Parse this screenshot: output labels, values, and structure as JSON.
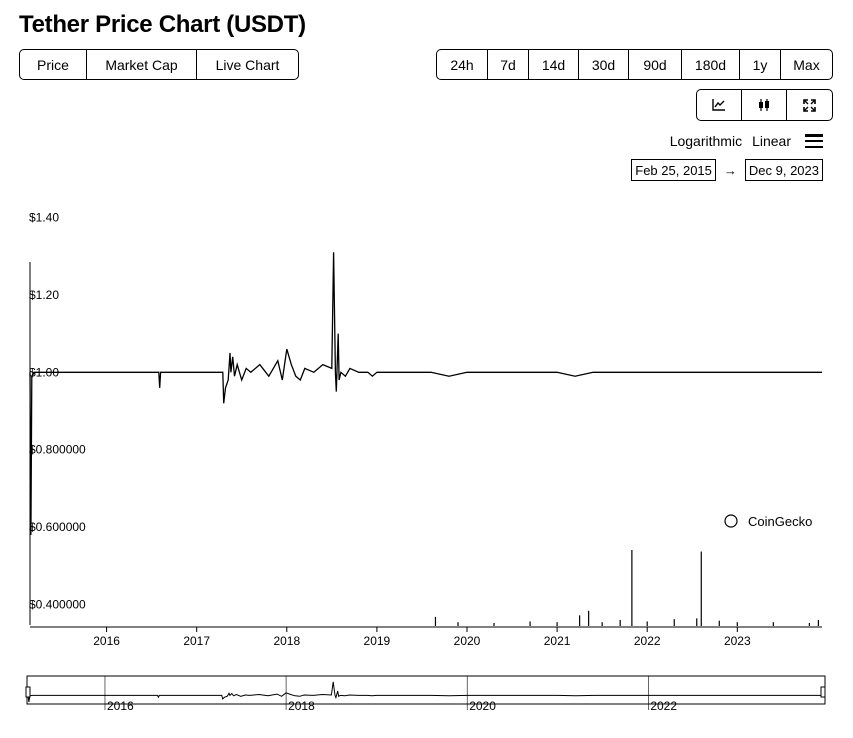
{
  "page_title": "Tether Price Chart (USDT)",
  "tabs": [
    "Price",
    "Market Cap",
    "Live Chart"
  ],
  "ranges": [
    "24h",
    "7d",
    "14d",
    "30d",
    "90d",
    "180d",
    "1y",
    "Max"
  ],
  "toolbar": {
    "icons": [
      "line-chart-icon",
      "candlestick-icon",
      "fullscreen-icon"
    ]
  },
  "scale": {
    "log_label": "Logarithmic",
    "linear_label": "Linear"
  },
  "date_range": {
    "from": "Feb 25, 2015",
    "arrow": "→",
    "to": "Dec 9, 2023"
  },
  "watermark": "CoinGecko",
  "colors": {
    "line": "#000000",
    "background": "#ffffff"
  },
  "chart_data": {
    "type": "line",
    "title": "",
    "xlabel": "",
    "ylabel": "",
    "y_tick_labels": [
      "$1.40",
      "$1.20",
      "$1.00",
      "$0.800000",
      "$0.600000",
      "$0.400000"
    ],
    "y_ticks": [
      1.4,
      1.2,
      1.0,
      0.8,
      0.6,
      0.4
    ],
    "x_tick_labels": [
      "2016",
      "2017",
      "2018",
      "2019",
      "2020",
      "2021",
      "2022",
      "2023"
    ],
    "x_ticks": [
      2016,
      2017,
      2018,
      2019,
      2020,
      2021,
      2022,
      2023
    ],
    "xlim": [
      2015.15,
      2023.94
    ],
    "ylim": [
      0.36,
      1.44
    ],
    "grid": false,
    "series": [
      {
        "x": [
          2015.15,
          2015.16,
          2015.17,
          2015.2,
          2015.5,
          2016.0,
          2016.58,
          2016.59,
          2016.6,
          2017.0,
          2017.29,
          2017.3,
          2017.32,
          2017.35,
          2017.37,
          2017.38,
          2017.4,
          2017.42,
          2017.45,
          2017.5,
          2017.55,
          2017.6,
          2017.7,
          2017.8,
          2017.9,
          2017.95,
          2018.0,
          2018.05,
          2018.1,
          2018.15,
          2018.2,
          2018.3,
          2018.4,
          2018.5,
          2018.52,
          2018.54,
          2018.55,
          2018.57,
          2018.58,
          2018.6,
          2018.65,
          2018.7,
          2018.8,
          2018.9,
          2018.95,
          2019.0,
          2019.2,
          2019.4,
          2019.6,
          2019.8,
          2020.0,
          2020.2,
          2020.4,
          2020.6,
          2020.8,
          2021.0,
          2021.2,
          2021.4,
          2021.6,
          2021.8,
          2022.0,
          2022.2,
          2022.4,
          2022.6,
          2022.8,
          2023.0,
          2023.2,
          2023.4,
          2023.6,
          2023.8,
          2023.94
        ],
        "y": [
          1.0,
          0.58,
          0.99,
          1.0,
          1.0,
          1.0,
          1.0,
          0.96,
          1.0,
          1.0,
          1.0,
          0.92,
          0.96,
          0.98,
          1.05,
          1.0,
          1.04,
          0.99,
          1.02,
          0.98,
          1.01,
          1.0,
          1.02,
          0.99,
          1.03,
          0.98,
          1.06,
          1.02,
          0.99,
          0.98,
          1.01,
          1.0,
          1.02,
          1.01,
          1.31,
          1.0,
          0.95,
          1.1,
          0.98,
          1.0,
          0.99,
          1.01,
          1.0,
          1.0,
          0.99,
          1.0,
          1.0,
          1.0,
          1.0,
          0.99,
          1.0,
          1.0,
          1.0,
          1.0,
          1.0,
          1.0,
          0.99,
          1.0,
          1.0,
          1.0,
          1.0,
          1.0,
          1.0,
          1.0,
          1.0,
          1.0,
          1.0,
          1.0,
          1.0,
          1.0,
          1.0
        ]
      }
    ],
    "volume": {
      "x": [
        2019.65,
        2019.9,
        2020.3,
        2020.7,
        2021.0,
        2021.25,
        2021.35,
        2021.5,
        2021.7,
        2021.83,
        2022.0,
        2022.3,
        2022.55,
        2022.6,
        2022.8,
        2023.0,
        2023.4,
        2023.8,
        2023.9
      ],
      "v": [
        0.12,
        0.05,
        0.04,
        0.06,
        0.05,
        0.14,
        0.2,
        0.05,
        0.08,
        1.0,
        0.06,
        0.09,
        0.1,
        0.98,
        0.07,
        0.05,
        0.05,
        0.04,
        0.08
      ]
    },
    "navigator_tick_labels": [
      "2016",
      "2018",
      "2020",
      "2022"
    ],
    "navigator_ticks": [
      2016,
      2018,
      2020,
      2022
    ]
  }
}
